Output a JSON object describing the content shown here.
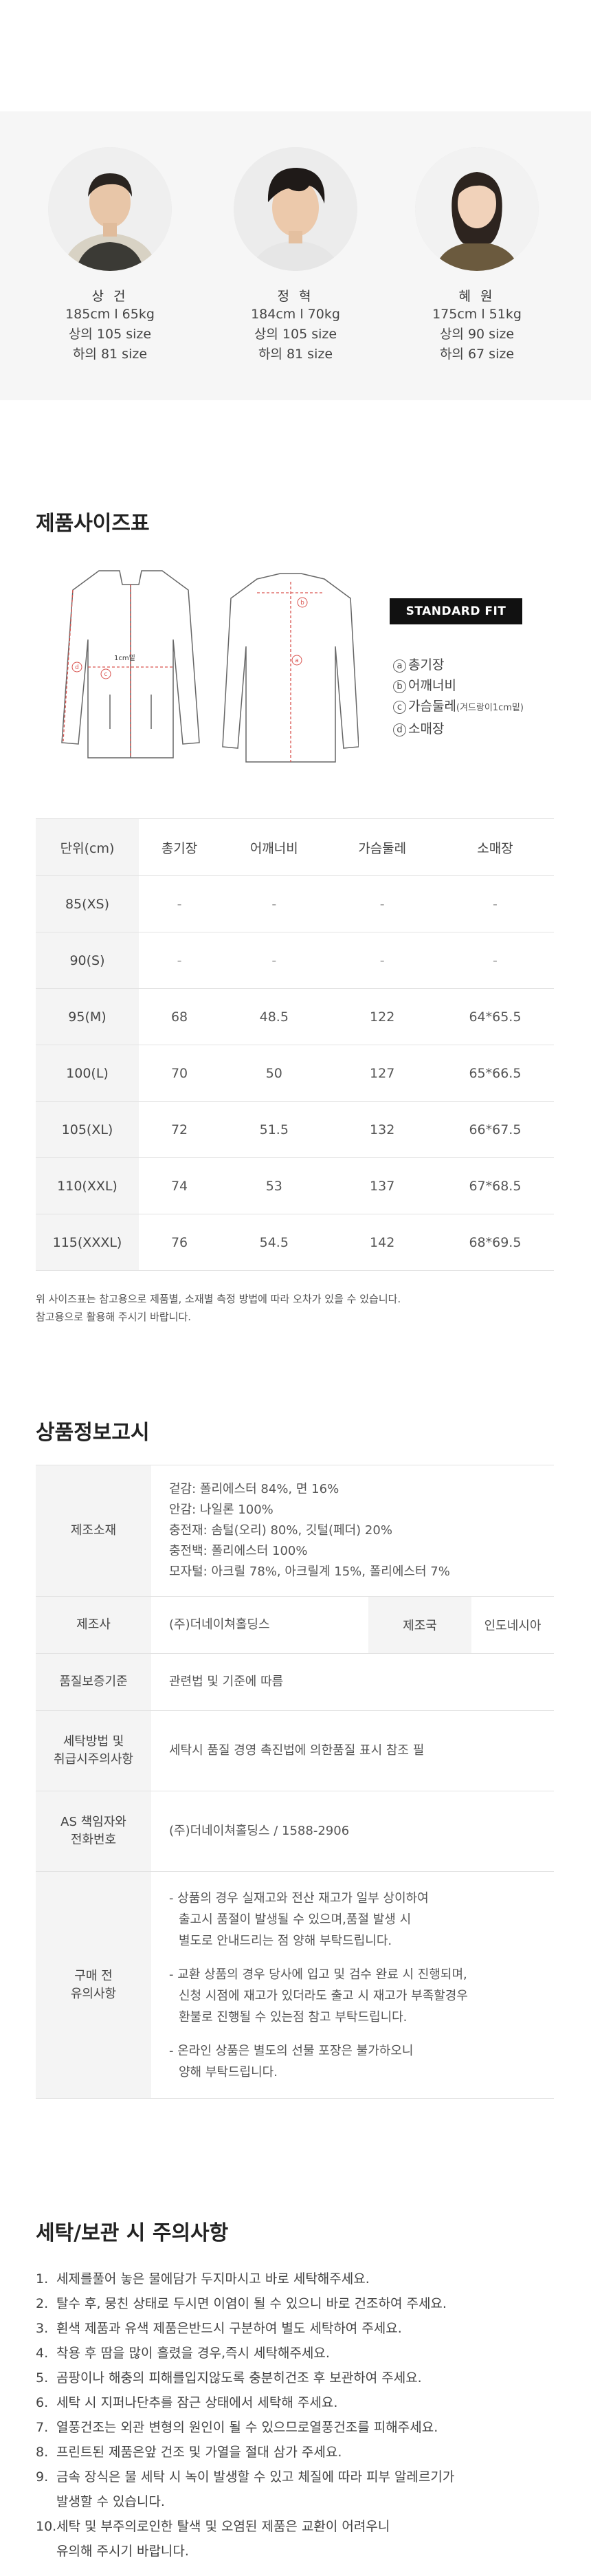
{
  "models": [
    {
      "name": "상 건",
      "height_weight": "185cm l 65kg",
      "top": "상의 105 size",
      "bottom": "하의 81 size"
    },
    {
      "name": "정 혁",
      "height_weight": "184cm l 70kg",
      "top": "상의 105 size",
      "bottom": "하의 81 size"
    },
    {
      "name": "혜 원",
      "height_weight": "175cm l 51kg",
      "top": "상의 90 size",
      "bottom": "하의 67 size"
    }
  ],
  "size_chart": {
    "title": "제품사이즈표",
    "fit_badge": "STANDARD FIT",
    "diagram_label": "1cm밑",
    "legend": [
      {
        "mark": "a",
        "text": "총기장",
        "sub": ""
      },
      {
        "mark": "b",
        "text": "어깨너비",
        "sub": ""
      },
      {
        "mark": "c",
        "text": "가슴둘레",
        "sub": "(겨드랑이1cm밑)"
      },
      {
        "mark": "d",
        "text": "소매장",
        "sub": ""
      }
    ],
    "headers": [
      "단위(cm)",
      "총기장",
      "어깨너비",
      "가슴둘레",
      "소매장"
    ],
    "rows": [
      [
        "85(XS)",
        "-",
        "-",
        "-",
        "-"
      ],
      [
        "90(S)",
        "-",
        "-",
        "-",
        "-"
      ],
      [
        "95(M)",
        "68",
        "48.5",
        "122",
        "64*65.5"
      ],
      [
        "100(L)",
        "70",
        "50",
        "127",
        "65*66.5"
      ],
      [
        "105(XL)",
        "72",
        "51.5",
        "132",
        "66*67.5"
      ],
      [
        "110(XXL)",
        "74",
        "53",
        "137",
        "67*68.5"
      ],
      [
        "115(XXXL)",
        "76",
        "54.5",
        "142",
        "68*69.5"
      ]
    ],
    "note_line1": "위 사이즈표는 참고용으로 제품별, 소재별 측정 방법에 따라 오차가 있을 수 있습니다.",
    "note_line2": "참고용으로 활용해 주시기 바랍니다."
  },
  "product_info": {
    "title": "상품정보고시",
    "material_label": "제조소재",
    "material_lines": [
      "겉감: 폴리에스터 84%, 면 16%",
      "안감: 나일론 100%",
      "충전재: 솜털(오리) 80%, 깃털(페더) 20%",
      "충전백: 폴리에스터 100%",
      "모자털: 아크릴 78%, 아크릴계 15%, 폴리에스터 7%"
    ],
    "maker_label": "제조사",
    "maker_value": "(주)더네이쳐홀딩스",
    "country_label": "제조국",
    "country_value": "인도네시아",
    "quality_label": "품질보증기준",
    "quality_value": "관련법 및 기준에 따름",
    "wash_label_1": "세탁방법 및",
    "wash_label_2": "취급시주의사항",
    "wash_value": "세탁시 품질 경영 촉진법에 의한품질 표시 참조 필",
    "as_label_1": "AS 책임자와",
    "as_label_2": "전화번호",
    "as_value": "(주)더네이쳐홀딩스 / 1588-2906",
    "caution_label_1": "구매 전",
    "caution_label_2": "유의사항",
    "cautions": [
      [
        "- 상품의 경우 실재고와 전산 재고가 일부 상이하여",
        "출고시 품절이 발생될 수 있으며,품절 발생 시",
        "별도로 안내드리는 점 양해 부탁드립니다."
      ],
      [
        "- 교환 상품의 경우 당사에 입고 및 검수 완료 시 진행되며,",
        "신청 시점에 재고가 있더라도 출고 시 재고가 부족할경우",
        "환불로 진행될 수 있는점 참고 부탁드립니다."
      ],
      [
        "- 온라인 상품은 별도의 선물 포장은 불가하오니",
        "양해 부탁드립니다."
      ]
    ]
  },
  "care": {
    "title": "세탁/보관 시 주의사항",
    "items": [
      {
        "num": "1.",
        "lines": [
          "세제를풀어 놓은 물에담가 두지마시고 바로 세탁해주세요."
        ]
      },
      {
        "num": "2.",
        "lines": [
          "탈수 후, 뭉친 상태로 두시면 이염이 될 수 있으니 바로 건조하여 주세요."
        ]
      },
      {
        "num": "3.",
        "lines": [
          "흰색 제품과 유색 제품은반드시 구분하여 별도 세탁하여 주세요."
        ]
      },
      {
        "num": "4.",
        "lines": [
          "착용 후 땀을 많이 흘렸을 경우,즉시 세탁해주세요."
        ]
      },
      {
        "num": "5.",
        "lines": [
          "곰팡이나 해충의 피해를입지않도록 충분히건조 후 보관하여 주세요."
        ]
      },
      {
        "num": "6.",
        "lines": [
          "세탁 시 지퍼나단추를 잠근 상태에서 세탁해 주세요."
        ]
      },
      {
        "num": "7.",
        "lines": [
          "열풍건조는 외관 변형의 원인이 될 수 있으므로열풍건조를 피해주세요."
        ]
      },
      {
        "num": "8.",
        "lines": [
          "프린트된 제품은앞 건조 및 가열을 절대 삼가 주세요."
        ]
      },
      {
        "num": "9.",
        "lines": [
          "금속 장식은 물 세탁 시 녹이 발생할 수 있고 체질에 따라 피부 알레르기가",
          "발생할 수 있습니다."
        ]
      },
      {
        "num": "10.",
        "lines": [
          "세탁 및 부주의로인한 탈색 및 오염된 제품은 교환이 어려우니",
          "유의해 주시기 바랍니다."
        ]
      }
    ]
  }
}
